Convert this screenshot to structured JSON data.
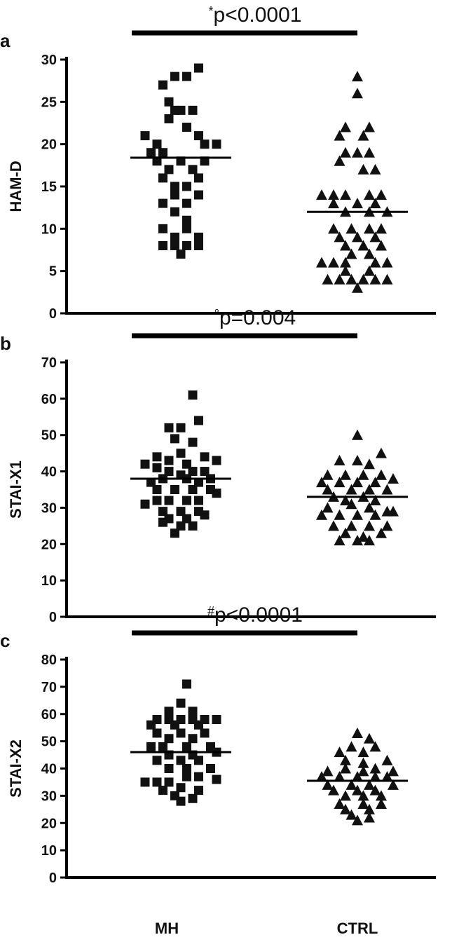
{
  "chart_data": [
    {
      "type": "scatter",
      "panel_label": "a",
      "ylabel": "HAM-D",
      "ylim": [
        0,
        30
      ],
      "yticks": [
        0,
        5,
        10,
        15,
        20,
        25,
        30
      ],
      "categories": [
        "MH",
        "CTRL"
      ],
      "significance": {
        "prefix": "*",
        "text": "p<0.0001",
        "between": [
          "MH",
          "CTRL"
        ]
      },
      "medians": [
        18.4,
        12.0
      ],
      "series": [
        {
          "category": "MH",
          "marker": "square",
          "points": [
            [
              -0.3,
              21
            ],
            [
              -0.25,
              19
            ],
            [
              -0.2,
              20
            ],
            [
              -0.15,
              19
            ],
            [
              -0.1,
              23
            ],
            [
              -0.05,
              24
            ],
            [
              0,
              24
            ],
            [
              0.05,
              22
            ],
            [
              0.1,
              24
            ],
            [
              0.15,
              21
            ],
            [
              0.2,
              20
            ],
            [
              0.3,
              20
            ],
            [
              -0.15,
              27
            ],
            [
              -0.05,
              28
            ],
            [
              0.05,
              28
            ],
            [
              0.15,
              29
            ],
            [
              -0.1,
              25
            ],
            [
              -0.2,
              18
            ],
            [
              -0.1,
              17
            ],
            [
              0,
              18
            ],
            [
              0.1,
              17
            ],
            [
              0.2,
              18
            ],
            [
              -0.15,
              16
            ],
            [
              -0.05,
              15
            ],
            [
              0.05,
              15
            ],
            [
              0.15,
              16
            ],
            [
              -0.15,
              13
            ],
            [
              -0.05,
              14
            ],
            [
              0.05,
              13
            ],
            [
              0.15,
              14
            ],
            [
              -0.05,
              12
            ],
            [
              0.05,
              11
            ],
            [
              -0.15,
              10
            ],
            [
              -0.05,
              9
            ],
            [
              0.05,
              10
            ],
            [
              0.15,
              9
            ],
            [
              -0.15,
              8
            ],
            [
              -0.05,
              8
            ],
            [
              0.05,
              8
            ],
            [
              0.15,
              8
            ],
            [
              0,
              7
            ]
          ]
        },
        {
          "category": "CTRL",
          "marker": "triangle",
          "points": [
            [
              0,
              28
            ],
            [
              0,
              26
            ],
            [
              -0.1,
              22
            ],
            [
              0.1,
              22
            ],
            [
              -0.15,
              21
            ],
            [
              0.05,
              21
            ],
            [
              -0.1,
              19
            ],
            [
              0,
              19
            ],
            [
              0.1,
              19
            ],
            [
              -0.15,
              18
            ],
            [
              0.05,
              17
            ],
            [
              0.15,
              17
            ],
            [
              -0.3,
              14
            ],
            [
              -0.2,
              14
            ],
            [
              -0.1,
              14
            ],
            [
              0.1,
              14
            ],
            [
              0.2,
              14
            ],
            [
              -0.2,
              13
            ],
            [
              0,
              13
            ],
            [
              0.15,
              13
            ],
            [
              -0.1,
              12
            ],
            [
              0.1,
              12
            ],
            [
              0.25,
              12
            ],
            [
              -0.2,
              10
            ],
            [
              -0.05,
              10
            ],
            [
              0.1,
              10
            ],
            [
              0.2,
              10
            ],
            [
              -0.15,
              9
            ],
            [
              0,
              9
            ],
            [
              0.15,
              9
            ],
            [
              -0.1,
              8
            ],
            [
              0.05,
              8
            ],
            [
              0.2,
              8
            ],
            [
              -0.05,
              7
            ],
            [
              0.1,
              7
            ],
            [
              -0.3,
              6
            ],
            [
              -0.2,
              6
            ],
            [
              -0.1,
              6
            ],
            [
              0.15,
              6
            ],
            [
              0.25,
              6
            ],
            [
              -0.1,
              5
            ],
            [
              0.1,
              5
            ],
            [
              -0.25,
              4
            ],
            [
              -0.15,
              4
            ],
            [
              -0.05,
              4
            ],
            [
              0.05,
              4
            ],
            [
              0.15,
              4
            ],
            [
              0.25,
              4
            ],
            [
              0,
              3
            ]
          ]
        }
      ]
    },
    {
      "type": "scatter",
      "panel_label": "b",
      "ylabel": "STAI-X1",
      "ylim": [
        0,
        70
      ],
      "yticks": [
        0,
        10,
        20,
        30,
        40,
        50,
        60,
        70
      ],
      "categories": [
        "MH",
        "CTRL"
      ],
      "significance": {
        "prefix": "°",
        "text": "p=0.004",
        "between": [
          "MH",
          "CTRL"
        ]
      },
      "medians": [
        38,
        33
      ],
      "series": [
        {
          "category": "MH",
          "marker": "square",
          "points": [
            [
              0.1,
              61
            ],
            [
              -0.1,
              52
            ],
            [
              0,
              52
            ],
            [
              0.15,
              54
            ],
            [
              -0.05,
              49
            ],
            [
              0.1,
              48
            ],
            [
              -0.2,
              44
            ],
            [
              0,
              45
            ],
            [
              0.2,
              44
            ],
            [
              -0.1,
              43
            ],
            [
              0.05,
              42
            ],
            [
              -0.3,
              42
            ],
            [
              -0.2,
              41
            ],
            [
              -0.1,
              40
            ],
            [
              0,
              39
            ],
            [
              0.1,
              40
            ],
            [
              0.2,
              40
            ],
            [
              0.3,
              43
            ],
            [
              -0.25,
              37
            ],
            [
              -0.15,
              38
            ],
            [
              0.05,
              38
            ],
            [
              0.15,
              37
            ],
            [
              0.25,
              38
            ],
            [
              -0.2,
              35
            ],
            [
              -0.05,
              35
            ],
            [
              0.1,
              35
            ],
            [
              0.25,
              35
            ],
            [
              -0.3,
              31
            ],
            [
              -0.2,
              32
            ],
            [
              -0.1,
              32
            ],
            [
              0.05,
              32
            ],
            [
              0.15,
              32
            ],
            [
              0.3,
              34
            ],
            [
              -0.15,
              29
            ],
            [
              0,
              29
            ],
            [
              0.15,
              29
            ],
            [
              -0.1,
              27
            ],
            [
              0.05,
              27
            ],
            [
              0.2,
              28
            ],
            [
              -0.15,
              26
            ],
            [
              0,
              25
            ],
            [
              0.1,
              25
            ],
            [
              -0.05,
              23
            ]
          ]
        },
        {
          "category": "CTRL",
          "marker": "triangle",
          "points": [
            [
              0,
              50
            ],
            [
              0.2,
              45
            ],
            [
              -0.15,
              43
            ],
            [
              0,
              43
            ],
            [
              0.1,
              42
            ],
            [
              -0.25,
              39
            ],
            [
              -0.1,
              39
            ],
            [
              0.05,
              39
            ],
            [
              0.2,
              39
            ],
            [
              -0.3,
              37
            ],
            [
              -0.15,
              37
            ],
            [
              0,
              37
            ],
            [
              0.15,
              37
            ],
            [
              0.3,
              38
            ],
            [
              -0.25,
              35
            ],
            [
              -0.05,
              35
            ],
            [
              0.1,
              35
            ],
            [
              0.25,
              35
            ],
            [
              -0.2,
              33
            ],
            [
              0.05,
              33
            ],
            [
              -0.1,
              32
            ],
            [
              0.15,
              32
            ],
            [
              -0.25,
              30
            ],
            [
              -0.05,
              31
            ],
            [
              0.1,
              30
            ],
            [
              0.25,
              29
            ],
            [
              -0.3,
              28
            ],
            [
              -0.15,
              28
            ],
            [
              0,
              28
            ],
            [
              0.15,
              28
            ],
            [
              0.3,
              29
            ],
            [
              -0.2,
              25
            ],
            [
              -0.05,
              25
            ],
            [
              0.1,
              25
            ],
            [
              0.25,
              25
            ],
            [
              -0.1,
              23
            ],
            [
              0.05,
              22
            ],
            [
              0.2,
              23
            ],
            [
              -0.15,
              21
            ],
            [
              0,
              21
            ],
            [
              0.1,
              21
            ]
          ]
        }
      ]
    },
    {
      "type": "scatter",
      "panel_label": "c",
      "ylabel": "STAI-X2",
      "ylim": [
        0,
        80
      ],
      "yticks": [
        0,
        10,
        20,
        30,
        40,
        50,
        60,
        70,
        80
      ],
      "categories": [
        "MH",
        "CTRL"
      ],
      "significance": {
        "prefix": "#",
        "text": "p<0.0001",
        "between": [
          "MH",
          "CTRL"
        ]
      },
      "medians": [
        46,
        35.5
      ],
      "series": [
        {
          "category": "MH",
          "marker": "square",
          "points": [
            [
              0.05,
              71
            ],
            [
              0,
              64
            ],
            [
              -0.1,
              61
            ],
            [
              0.1,
              61
            ],
            [
              -0.2,
              58
            ],
            [
              -0.1,
              58
            ],
            [
              0,
              58
            ],
            [
              0.1,
              58
            ],
            [
              0.2,
              58
            ],
            [
              0.3,
              58
            ],
            [
              -0.25,
              56
            ],
            [
              -0.05,
              56
            ],
            [
              0.15,
              56
            ],
            [
              -0.2,
              53
            ],
            [
              0,
              53
            ],
            [
              0.2,
              53
            ],
            [
              -0.1,
              51
            ],
            [
              0.1,
              51
            ],
            [
              -0.25,
              48
            ],
            [
              -0.15,
              48
            ],
            [
              0.05,
              48
            ],
            [
              0.25,
              48
            ],
            [
              -0.1,
              45
            ],
            [
              0.1,
              45
            ],
            [
              0.3,
              46
            ],
            [
              -0.2,
              43
            ],
            [
              0,
              43
            ],
            [
              0.15,
              43
            ],
            [
              -0.1,
              40
            ],
            [
              0.05,
              40
            ],
            [
              0.25,
              40
            ],
            [
              -0.3,
              35
            ],
            [
              -0.2,
              35
            ],
            [
              -0.1,
              35
            ],
            [
              0.05,
              37
            ],
            [
              0.15,
              37
            ],
            [
              0.3,
              36
            ],
            [
              -0.15,
              32
            ],
            [
              0,
              33
            ],
            [
              0.15,
              32
            ],
            [
              -0.05,
              30
            ],
            [
              0.1,
              29
            ],
            [
              0,
              28
            ]
          ]
        },
        {
          "category": "CTRL",
          "marker": "triangle",
          "points": [
            [
              0,
              53
            ],
            [
              0.1,
              51
            ],
            [
              -0.05,
              48
            ],
            [
              0.15,
              48
            ],
            [
              -0.15,
              46
            ],
            [
              0.05,
              46
            ],
            [
              0.25,
              43
            ],
            [
              -0.1,
              43
            ],
            [
              0.05,
              42
            ],
            [
              -0.25,
              39
            ],
            [
              -0.1,
              40
            ],
            [
              0.05,
              39
            ],
            [
              0.15,
              40
            ],
            [
              0.3,
              39
            ],
            [
              -0.3,
              37
            ],
            [
              -0.15,
              37
            ],
            [
              0,
              37
            ],
            [
              0.15,
              37
            ],
            [
              0.25,
              37
            ],
            [
              -0.25,
              34
            ],
            [
              -0.05,
              34
            ],
            [
              0.1,
              34
            ],
            [
              0.3,
              34
            ],
            [
              -0.2,
              32
            ],
            [
              0,
              32
            ],
            [
              0.15,
              32
            ],
            [
              -0.1,
              30
            ],
            [
              0.05,
              30
            ],
            [
              0.2,
              30
            ],
            [
              -0.15,
              27
            ],
            [
              0.05,
              27
            ],
            [
              0.2,
              27
            ],
            [
              -0.1,
              25
            ],
            [
              0.1,
              25
            ],
            [
              -0.05,
              23
            ],
            [
              0,
              21
            ],
            [
              0.1,
              22
            ]
          ]
        }
      ]
    }
  ]
}
